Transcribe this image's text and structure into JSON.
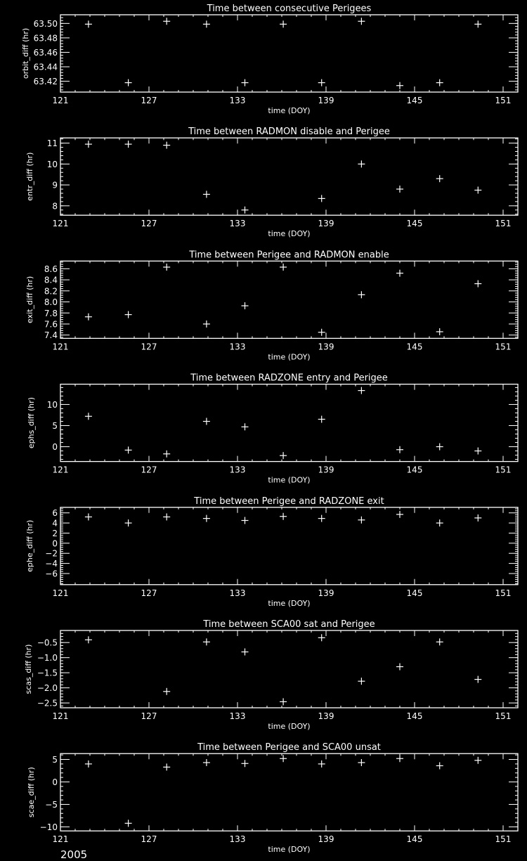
{
  "colors": {
    "background": "#000000",
    "foreground": "#ffffff"
  },
  "footer_year": "2005",
  "chart_data": [
    {
      "type": "scatter",
      "marker": "plus",
      "title": "Time between consecutive Perigees",
      "xlabel": "time (DOY)",
      "ylabel": "orbit_diff (hr)",
      "xlim": [
        121,
        152
      ],
      "xticks": [
        121,
        127,
        133,
        139,
        145,
        151
      ],
      "ylim": [
        63.405,
        63.512
      ],
      "yticks": [
        "63.42",
        "63.44",
        "63.46",
        "63.48",
        "63.50"
      ],
      "x": [
        122.9,
        125.6,
        128.2,
        130.9,
        133.5,
        136.1,
        138.7,
        141.4,
        144.0,
        146.7,
        149.3
      ],
      "y": [
        63.499,
        63.418,
        63.503,
        63.499,
        63.418,
        63.499,
        63.418,
        63.503,
        63.414,
        63.418,
        63.499
      ]
    },
    {
      "type": "scatter",
      "marker": "plus",
      "title": "Time between RADMON disable and Perigee",
      "xlabel": "time (DOY)",
      "ylabel": "entr_diff (hr)",
      "xlim": [
        121,
        152
      ],
      "xticks": [
        121,
        127,
        133,
        139,
        145,
        151
      ],
      "ylim": [
        7.55,
        11.25
      ],
      "yticks": [
        "8",
        "9",
        "10",
        "11"
      ],
      "x": [
        122.9,
        125.6,
        128.2,
        130.9,
        133.5,
        138.7,
        141.4,
        144.0,
        146.7,
        149.3
      ],
      "y": [
        10.95,
        10.95,
        10.9,
        8.55,
        7.8,
        8.35,
        10.0,
        8.8,
        9.3,
        8.75
      ]
    },
    {
      "type": "scatter",
      "marker": "plus",
      "title": "Time between Perigee and RADMON enable",
      "xlabel": "time (DOY)",
      "ylabel": "exit_diff (hr)",
      "xlim": [
        121,
        152
      ],
      "xticks": [
        121,
        127,
        133,
        139,
        145,
        151
      ],
      "ylim": [
        7.34,
        8.74
      ],
      "yticks": [
        "7.4",
        "7.6",
        "7.8",
        "8.0",
        "8.2",
        "8.4",
        "8.6"
      ],
      "x": [
        122.9,
        125.6,
        128.2,
        130.9,
        133.5,
        136.1,
        138.7,
        141.4,
        144.0,
        146.7,
        149.3
      ],
      "y": [
        7.73,
        7.77,
        8.63,
        7.6,
        7.93,
        8.63,
        7.45,
        8.13,
        8.52,
        7.46,
        8.33
      ]
    },
    {
      "type": "scatter",
      "marker": "plus",
      "title": "Time between RADZONE entry and Perigee",
      "xlabel": "time (DOY)",
      "ylabel": "ephs_diff (hr)",
      "xlim": [
        121,
        152
      ],
      "xticks": [
        121,
        127,
        133,
        139,
        145,
        151
      ],
      "ylim": [
        -3.5,
        14.8
      ],
      "yticks": [
        "0",
        "5",
        "10"
      ],
      "x": [
        122.9,
        125.6,
        128.2,
        130.9,
        133.5,
        136.1,
        138.7,
        141.4,
        144.0,
        146.7,
        149.3
      ],
      "y": [
        7.2,
        -0.8,
        -1.7,
        6.0,
        4.7,
        -2.1,
        6.5,
        13.3,
        -0.7,
        0.0,
        -1.0
      ]
    },
    {
      "type": "scatter",
      "marker": "plus",
      "title": "Time between Perigee and RADZONE exit",
      "xlabel": "time (DOY)",
      "ylabel": "ephe_diff (hr)",
      "xlim": [
        121,
        152
      ],
      "xticks": [
        121,
        127,
        133,
        139,
        145,
        151
      ],
      "ylim": [
        -8.2,
        7.1
      ],
      "yticks": [
        "-6",
        "-4",
        "-2",
        "0",
        "2",
        "4",
        "6"
      ],
      "x": [
        122.9,
        125.6,
        128.2,
        130.9,
        133.5,
        136.1,
        138.7,
        141.4,
        144.0,
        146.7,
        149.3
      ],
      "y": [
        5.2,
        4.0,
        5.2,
        4.9,
        4.5,
        5.3,
        4.9,
        4.6,
        5.7,
        4.0,
        5.0
      ]
    },
    {
      "type": "scatter",
      "marker": "plus",
      "title": "Time between SCA00 sat and Perigee",
      "xlabel": "time (DOY)",
      "ylabel": "scas_diff (hr)",
      "xlim": [
        121,
        152
      ],
      "xticks": [
        121,
        127,
        133,
        139,
        145,
        151
      ],
      "ylim": [
        -2.66,
        -0.1
      ],
      "yticks": [
        "-2.5",
        "-2.0",
        "-1.5",
        "-1.0",
        "-0.5"
      ],
      "x": [
        122.9,
        128.2,
        130.9,
        133.5,
        136.1,
        138.7,
        141.4,
        144.0,
        146.7,
        149.3
      ],
      "y": [
        -0.41,
        -2.12,
        -0.48,
        -0.81,
        -2.46,
        -0.34,
        -1.78,
        -1.3,
        -0.48,
        -1.72
      ]
    },
    {
      "type": "scatter",
      "marker": "plus",
      "title": "Time between Perigee and SCA00 unsat",
      "xlabel": "time (DOY)",
      "ylabel": "scae_diff (hr)",
      "xlim": [
        121,
        152
      ],
      "xticks": [
        121,
        127,
        133,
        139,
        145,
        151
      ],
      "ylim": [
        -10.9,
        6.3
      ],
      "yticks": [
        "-10",
        "-5",
        "0",
        "5"
      ],
      "x": [
        122.9,
        125.6,
        128.2,
        130.9,
        133.5,
        136.1,
        138.7,
        141.4,
        144.0,
        146.7,
        149.3
      ],
      "y": [
        4.0,
        -9.2,
        3.3,
        4.3,
        4.1,
        5.2,
        4.0,
        4.3,
        5.2,
        3.6,
        4.8
      ]
    }
  ]
}
